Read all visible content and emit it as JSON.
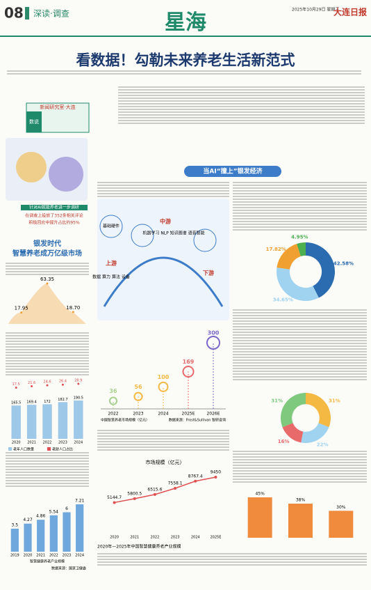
{
  "header": {
    "page": "08",
    "section": "深读·调查",
    "masthead": "星海",
    "date": "2025年10月29日 星期三",
    "paper": "大连日报"
  },
  "title": "看数据！勾勒未来养老生活新范式",
  "sidebar": {
    "tag": "数说",
    "unit": "新闻研究室·大连",
    "stats": [
      "针对AI就能养老进一步调研",
      "在调查上投放了352条相关评论",
      "积极回应中提升占比约95%"
    ]
  },
  "section_heads": [
    "当AI“撞上”银发经济",
    "银发时代",
    "智慧养老成万亿级市场"
  ],
  "diagram": {
    "labels": [
      "基础硬件",
      "上游",
      "中游",
      "下游",
      "数据 算力 算法 设备",
      "机器学习 NLP 知识图谱 语音智能"
    ]
  },
  "chart_data": [
    {
      "type": "curve",
      "values": [
        17.95,
        63.35,
        18.7
      ],
      "value_labels": [
        "17.95",
        "63.35",
        "18.70"
      ],
      "color": "#f0a030"
    },
    {
      "type": "combo",
      "categories": [
        "2020",
        "2021",
        "2022",
        "2023",
        "2024"
      ],
      "series": [
        {
          "name": "老年人口数量",
          "color": "#9ec8e8",
          "values": [
            165.5,
            169.4,
            172.0,
            182.7,
            190.5
          ]
        },
        {
          "name": "老龄人口占比",
          "color": "#e05050",
          "values": [
            17.5,
            21.6,
            24.6,
            26.4,
            28.9
          ]
        }
      ]
    },
    {
      "type": "bar",
      "categories": [
        "2019",
        "2020",
        "2021",
        "2022",
        "2023",
        "2024"
      ],
      "values": [
        3.5,
        4.27,
        4.86,
        5.54,
        6,
        7.21
      ],
      "color": "#6fa8dc",
      "legend": "智慧健康养老产业规模",
      "source": "数据来源：国家卫健委"
    },
    {
      "type": "bubble",
      "categories": [
        "2022",
        "2023",
        "2024",
        "2025E",
        "2026E"
      ],
      "values": [
        36,
        56,
        100,
        169,
        300
      ],
      "colors": [
        "#a8d08d",
        "#f4b942",
        "#f4b942",
        "#e86a6a",
        "#7b68c8"
      ],
      "caption": "中国智慧养老市场规模（亿元）",
      "source": "数据来源：Frost&Sullivan 智研咨询"
    },
    {
      "type": "pie",
      "values": [
        42.58,
        34.65,
        17.82,
        4.95
      ],
      "value_labels": [
        "42.58%",
        "34.65%",
        "17.82%",
        "4.95%"
      ],
      "colors": [
        "#2b6cb0",
        "#9fd3f0",
        "#f0a030",
        "#4caf50"
      ]
    },
    {
      "type": "line",
      "categories": [
        "2020",
        "2021",
        "2022",
        "2023",
        "2024",
        "2025E"
      ],
      "values": [
        5144.7,
        5800.5,
        6515.6,
        7558.1,
        8767.4,
        9450
      ],
      "color": "#e05050",
      "title": "市场规模（亿元）",
      "caption": "2020年—2025年中国智慧健康养老产业规模"
    },
    {
      "type": "pie",
      "values": [
        31,
        22,
        16,
        31
      ],
      "value_labels": [
        "31%",
        "22%",
        "16%",
        "31%"
      ],
      "colors": [
        "#f4b942",
        "#9fd3f0",
        "#e86a6a",
        "#7fc97f"
      ]
    },
    {
      "type": "bar",
      "values": [
        45,
        38,
        30
      ],
      "value_labels": [
        "45%",
        "38%",
        "30%"
      ],
      "color": "#f08a3c"
    }
  ]
}
